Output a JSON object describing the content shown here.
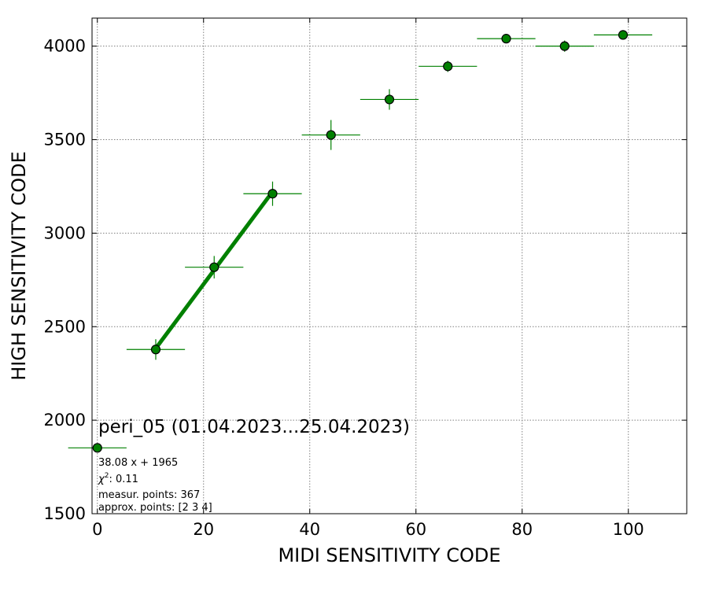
{
  "chart_data": {
    "type": "scatter",
    "xlabel": "MIDI SENSITIVITY CODE",
    "ylabel": "HIGH SENSITIVITY CODE",
    "xlim": [
      -1,
      111
    ],
    "ylim": [
      1500,
      4150
    ],
    "xticks": [
      0,
      20,
      40,
      60,
      80,
      100
    ],
    "yticks": [
      1500,
      2000,
      2500,
      3000,
      3500,
      4000
    ],
    "grid": true,
    "colors": {
      "marker": "#008000",
      "marker_edge": "#000000",
      "fit_line": "#008000"
    },
    "series": [
      {
        "values": [
          {
            "x": 0,
            "y": 1852,
            "xerr": 5.5,
            "yerr": 0
          },
          {
            "x": 11,
            "y": 2378,
            "xerr": 5.5,
            "yerr": 55
          },
          {
            "x": 22,
            "y": 2818,
            "xerr": 5.5,
            "yerr": 60
          },
          {
            "x": 33,
            "y": 3211,
            "xerr": 5.5,
            "yerr": 65
          },
          {
            "x": 44,
            "y": 3525,
            "xerr": 5.5,
            "yerr": 80
          },
          {
            "x": 55,
            "y": 3715,
            "xerr": 5.5,
            "yerr": 55
          },
          {
            "x": 66,
            "y": 3892,
            "xerr": 5.5,
            "yerr": 30
          },
          {
            "x": 77,
            "y": 4040,
            "xerr": 5.5,
            "yerr": 15
          },
          {
            "x": 88,
            "y": 4000,
            "xerr": 5.5,
            "yerr": 30
          },
          {
            "x": 99,
            "y": 4060,
            "xerr": 5.5,
            "yerr": 12
          }
        ]
      }
    ],
    "fit_line": {
      "x": [
        11,
        33
      ],
      "y": [
        2384,
        3222
      ]
    },
    "annotations": {
      "title": "peri_05 (01.04.2023...25.04.2023)",
      "equation": "38.08 x + 1965",
      "chi_label": "χ",
      "chi_sup": "2",
      "chi_value": ": 0.11",
      "measur_points": "measur. points: 367",
      "approx_points": "approx. points: [2 3 4]"
    }
  }
}
